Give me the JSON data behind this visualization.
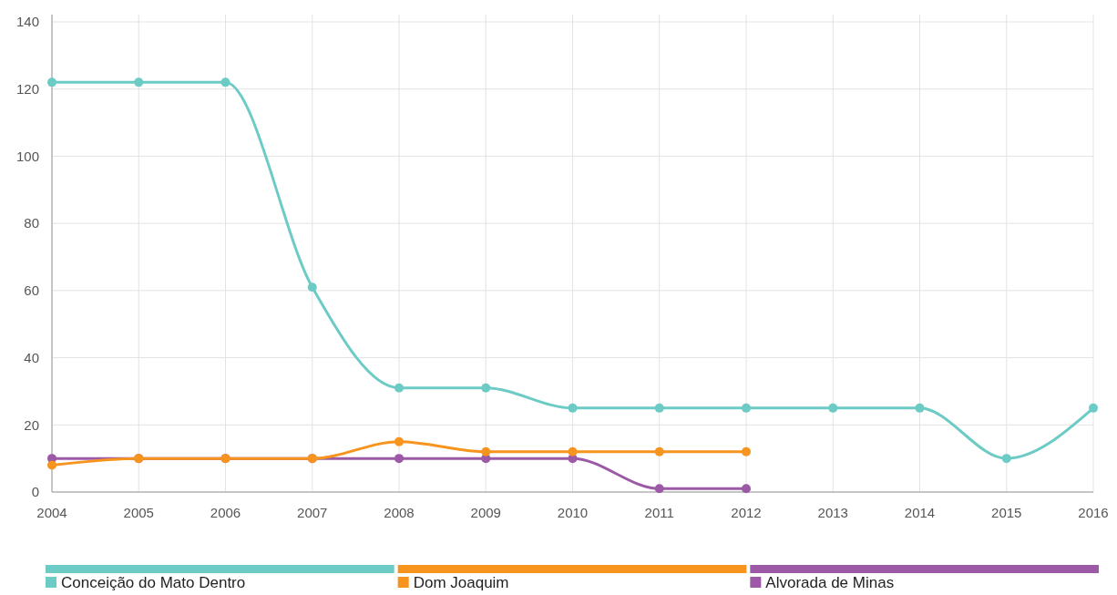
{
  "chart_data": {
    "type": "line",
    "x": [
      2004,
      2005,
      2006,
      2007,
      2008,
      2009,
      2010,
      2011,
      2012,
      2013,
      2014,
      2015,
      2016
    ],
    "xlim": [
      2004,
      2016
    ],
    "xticks": [
      2004,
      2005,
      2006,
      2007,
      2008,
      2009,
      2010,
      2011,
      2012,
      2013,
      2014,
      2015,
      2016
    ],
    "ylim": [
      0,
      140
    ],
    "yticks": [
      0,
      20,
      40,
      60,
      80,
      100,
      120,
      140
    ],
    "grid": true,
    "marker": "circle",
    "legend": "bottom",
    "series": [
      {
        "name": "Conceição do Mato Dentro",
        "color": "#6dcbc6",
        "values": [
          122,
          122,
          122,
          61,
          31,
          31,
          25,
          25,
          25,
          25,
          25,
          10,
          25
        ]
      },
      {
        "name": "Dom Joaquim",
        "color": "#f7941d",
        "values": [
          8,
          10,
          10,
          10,
          15,
          12,
          12,
          12,
          12,
          null,
          null,
          null,
          null
        ]
      },
      {
        "name": "Alvorada de Minas",
        "color": "#9b59a6",
        "values": [
          10,
          10,
          10,
          10,
          10,
          10,
          10,
          1,
          1,
          null,
          null,
          null,
          null
        ]
      }
    ]
  }
}
